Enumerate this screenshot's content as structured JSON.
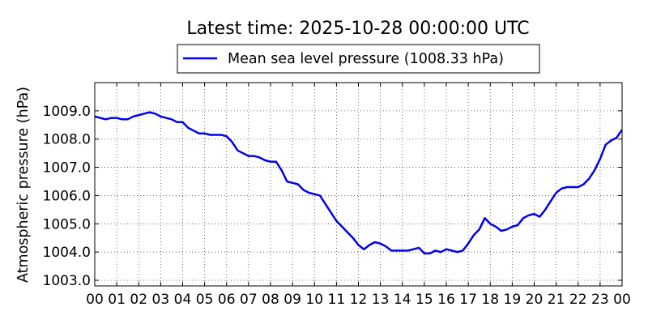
{
  "chart_data": {
    "type": "line",
    "title": "Latest time: 2025-10-28 00:00:00 UTC",
    "ylabel": "Atmospheric pressure (hPa)",
    "xlabel": "",
    "xlim": [
      0,
      24
    ],
    "ylim": [
      1002.8,
      1010.0
    ],
    "x_tick_labels": [
      "00",
      "01",
      "02",
      "03",
      "04",
      "05",
      "06",
      "07",
      "08",
      "09",
      "10",
      "11",
      "12",
      "13",
      "14",
      "15",
      "16",
      "17",
      "18",
      "19",
      "20",
      "21",
      "22",
      "23",
      "00"
    ],
    "y_tick_values": [
      1003.0,
      1004.0,
      1005.0,
      1006.0,
      1007.0,
      1008.0,
      1009.0
    ],
    "y_tick_labels": [
      "1003.0",
      "1004.0",
      "1005.0",
      "1006.0",
      "1007.0",
      "1008.0",
      "1009.0"
    ],
    "grid": true,
    "legend_position": "top-center",
    "series": [
      {
        "name": "Mean sea level pressure (1008.33 hPa)",
        "color": "#0000ee",
        "x": [
          0.0,
          0.25,
          0.5,
          0.75,
          1.0,
          1.25,
          1.5,
          1.75,
          2.0,
          2.25,
          2.5,
          2.75,
          3.0,
          3.25,
          3.5,
          3.75,
          4.0,
          4.25,
          4.5,
          4.75,
          5.0,
          5.25,
          5.5,
          5.75,
          6.0,
          6.25,
          6.5,
          6.75,
          7.0,
          7.25,
          7.5,
          7.75,
          8.0,
          8.25,
          8.5,
          8.75,
          9.0,
          9.25,
          9.5,
          9.75,
          10.0,
          10.25,
          10.5,
          10.75,
          11.0,
          11.25,
          11.5,
          11.75,
          12.0,
          12.25,
          12.5,
          12.75,
          13.0,
          13.25,
          13.5,
          13.75,
          14.0,
          14.25,
          14.5,
          14.75,
          15.0,
          15.25,
          15.5,
          15.75,
          16.0,
          16.25,
          16.5,
          16.75,
          17.0,
          17.25,
          17.5,
          17.75,
          18.0,
          18.25,
          18.5,
          18.75,
          19.0,
          19.25,
          19.5,
          19.75,
          20.0,
          20.25,
          20.5,
          20.75,
          21.0,
          21.25,
          21.5,
          21.75,
          22.0,
          22.25,
          22.5,
          22.75,
          23.0,
          23.25,
          23.5,
          23.75,
          24.0
        ],
        "y": [
          1008.8,
          1008.75,
          1008.7,
          1008.75,
          1008.75,
          1008.7,
          1008.7,
          1008.8,
          1008.85,
          1008.9,
          1008.95,
          1008.9,
          1008.8,
          1008.75,
          1008.7,
          1008.6,
          1008.6,
          1008.4,
          1008.3,
          1008.2,
          1008.2,
          1008.15,
          1008.15,
          1008.15,
          1008.1,
          1007.9,
          1007.6,
          1007.5,
          1007.4,
          1007.4,
          1007.35,
          1007.25,
          1007.2,
          1007.2,
          1006.9,
          1006.5,
          1006.45,
          1006.4,
          1006.2,
          1006.1,
          1006.05,
          1006.0,
          1005.7,
          1005.4,
          1005.1,
          1004.9,
          1004.7,
          1004.5,
          1004.25,
          1004.1,
          1004.25,
          1004.35,
          1004.3,
          1004.2,
          1004.05,
          1004.05,
          1004.05,
          1004.05,
          1004.1,
          1004.15,
          1003.95,
          1003.95,
          1004.05,
          1004.0,
          1004.1,
          1004.05,
          1004.0,
          1004.05,
          1004.3,
          1004.6,
          1004.8,
          1005.2,
          1005.0,
          1004.9,
          1004.75,
          1004.8,
          1004.9,
          1004.95,
          1005.2,
          1005.3,
          1005.35,
          1005.25,
          1005.5,
          1005.8,
          1006.1,
          1006.25,
          1006.3,
          1006.3,
          1006.3,
          1006.4,
          1006.6,
          1006.9,
          1007.3,
          1007.8,
          1007.95,
          1008.05,
          1008.33
        ]
      }
    ]
  }
}
